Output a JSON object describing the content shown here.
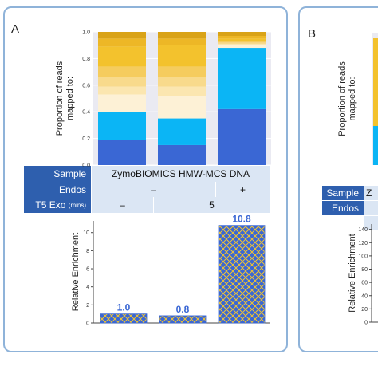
{
  "panels": {
    "a": {
      "letter": "A"
    },
    "b": {
      "letter": "B"
    }
  },
  "chart_data": [
    {
      "type": "bar",
      "stacked": true,
      "panel": "A",
      "categories": [
        "",
        "",
        ""
      ],
      "ylabel": "Proportion of reads\nmapped to:",
      "ylim": [
        0,
        1.0
      ],
      "yticks": [
        "0.0",
        "0.2",
        "0.4",
        "0.6",
        "0.8",
        "1.0"
      ],
      "series": [
        {
          "values": [
            0.19,
            0.15,
            0.42
          ],
          "color": "#3a67d4"
        },
        {
          "values": [
            0.21,
            0.2,
            0.46
          ],
          "color": "#0bb5f5"
        },
        {
          "values": [
            0.13,
            0.17,
            0.02
          ],
          "color": "#fdf1d6"
        },
        {
          "values": [
            0.06,
            0.07,
            0.01
          ],
          "color": "#fbe6b0"
        },
        {
          "values": [
            0.07,
            0.07,
            0.01
          ],
          "color": "#f8da8c"
        },
        {
          "values": [
            0.08,
            0.08,
            0.01
          ],
          "color": "#f5cc5e"
        },
        {
          "values": [
            0.15,
            0.16,
            0.02
          ],
          "color": "#f3c22d"
        },
        {
          "values": [
            0.06,
            0.05,
            0.02
          ],
          "color": "#edb726"
        },
        {
          "values": [
            0.05,
            0.05,
            0.03
          ],
          "color": "#d9a318"
        }
      ]
    },
    {
      "type": "bar",
      "panel": "A",
      "categories": [
        "",
        "",
        ""
      ],
      "values": [
        1.0,
        0.8,
        10.8
      ],
      "labels": [
        "1.0",
        "0.8",
        "10.8"
      ],
      "ylabel": "Relative Enrichment",
      "ylim": [
        0,
        11.3
      ],
      "yticks": [
        "0",
        "2",
        "4",
        "6",
        "8",
        "10"
      ],
      "fill": "#3a67d4",
      "hatch": "#f2c530"
    },
    {
      "type": "bar",
      "panel": "B",
      "categories": [],
      "values": [],
      "ylabel": "Relative Enrichment",
      "ylim": [
        0,
        148
      ],
      "yticks": [
        "0",
        "20",
        "40",
        "60",
        "80",
        "100",
        "120",
        "140"
      ]
    }
  ],
  "meta_table": {
    "sample_label": "Sample",
    "sample_value": "ZymoBIOMICS HMW-MCS DNA",
    "endos_label": "Endos",
    "endos_values": [
      "–",
      "+"
    ],
    "t5_label": "T5 Exo",
    "t5_unit": "(mins)",
    "t5_values": [
      "–",
      "5"
    ]
  },
  "meta_table_b": {
    "sample_label": "Sample",
    "sample_value": "Z",
    "endos_label": "Endos"
  }
}
